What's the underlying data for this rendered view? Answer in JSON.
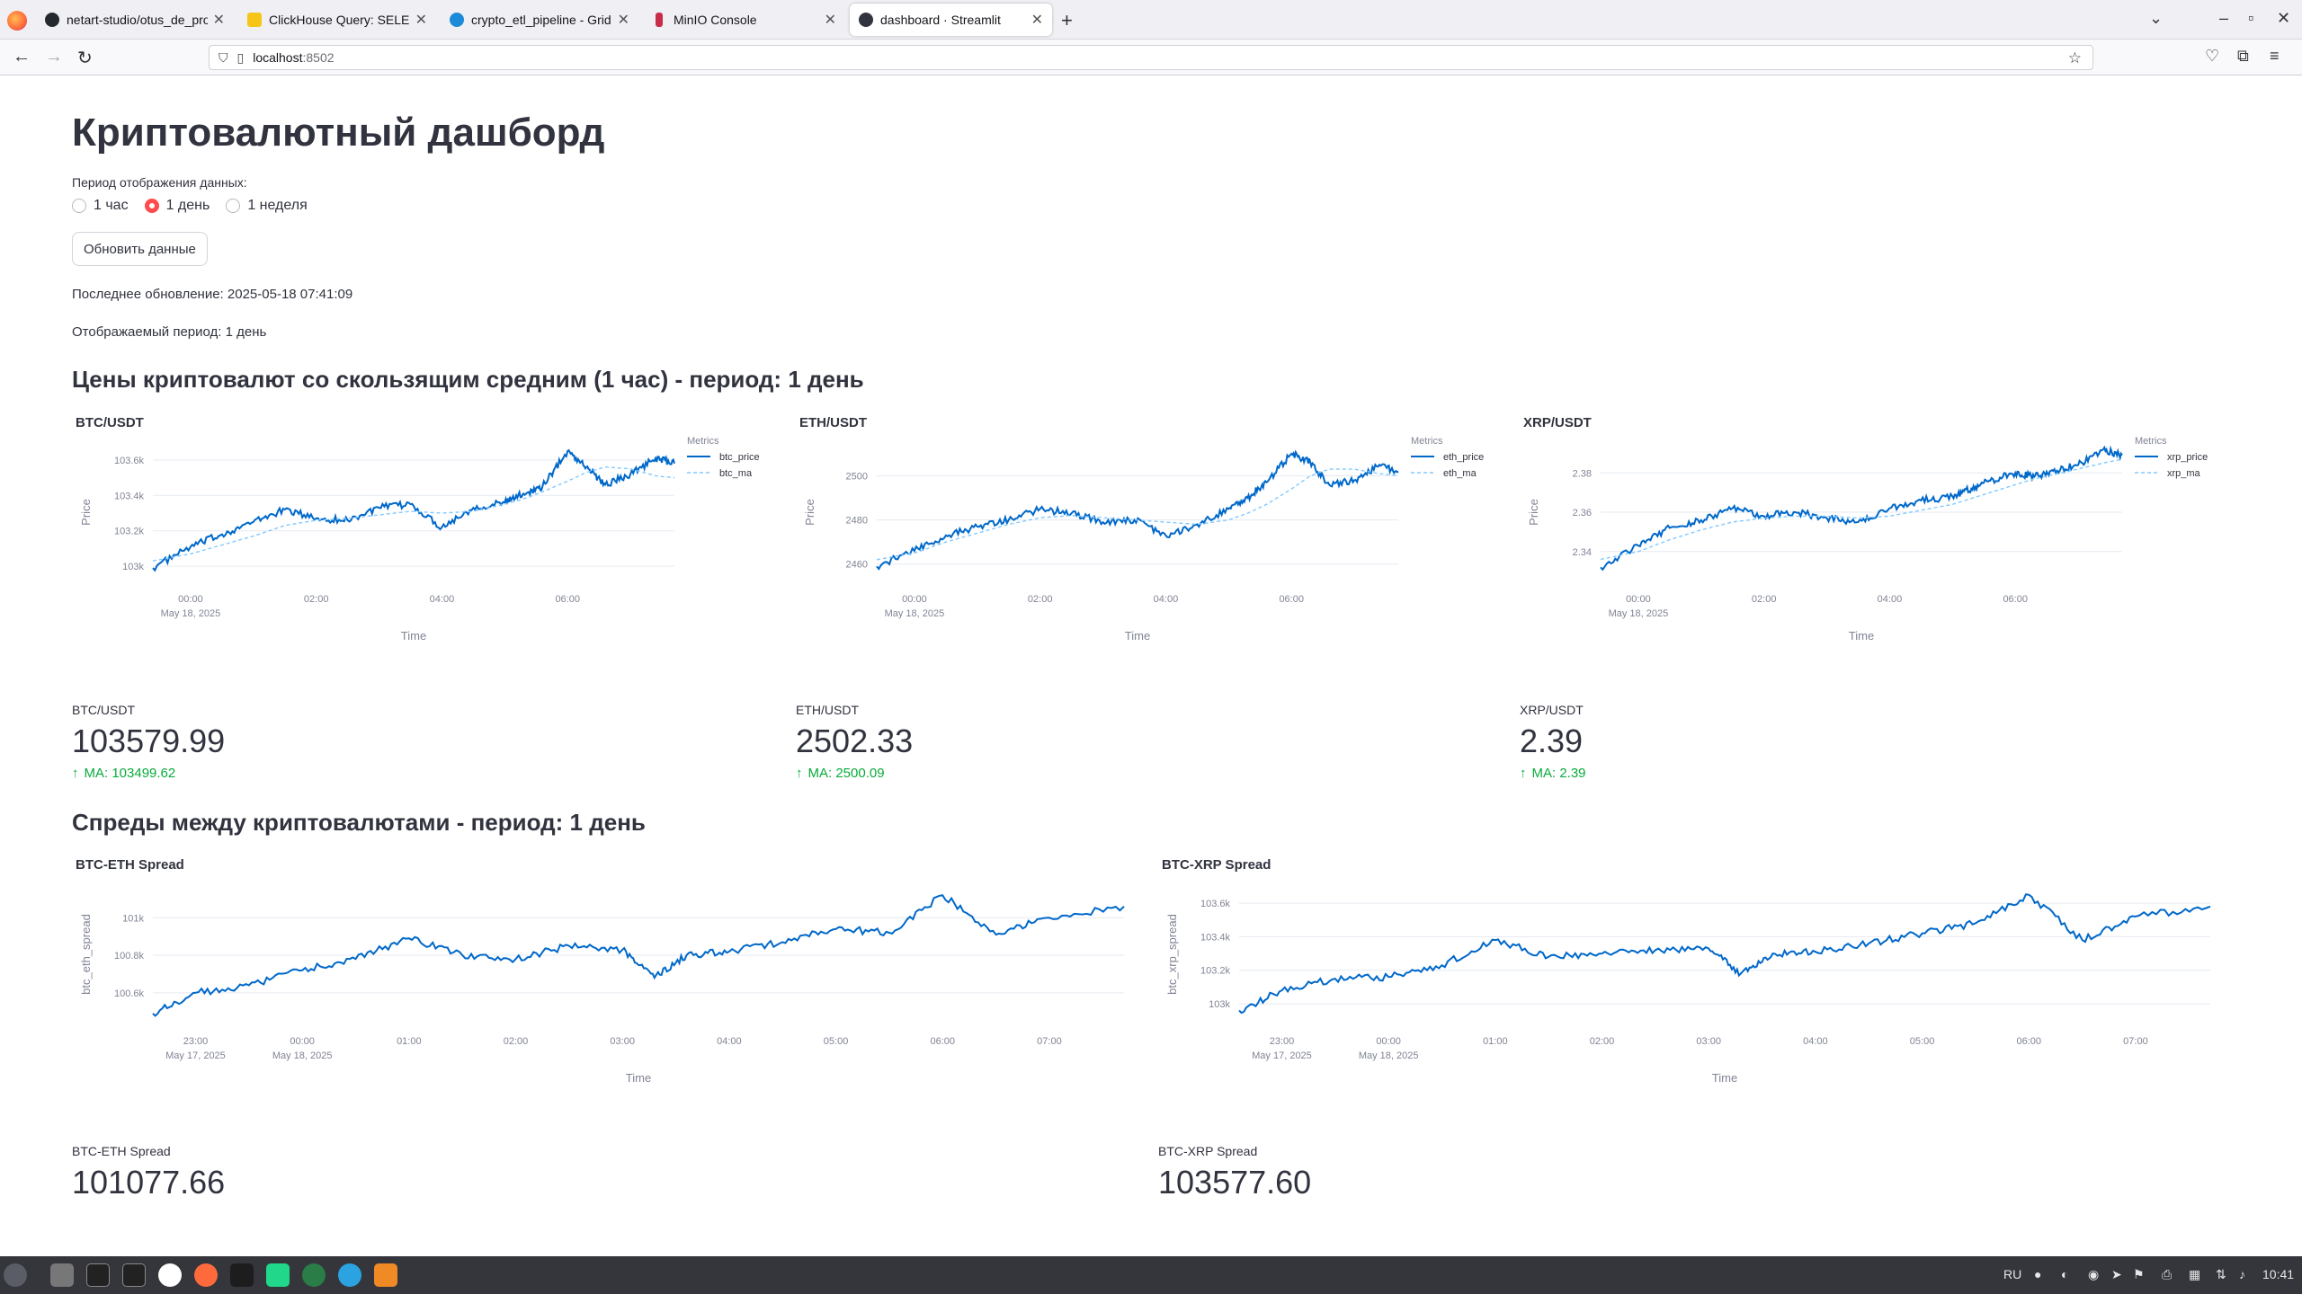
{
  "browser": {
    "tabs": [
      {
        "label": "netart-studio/otus_de_project",
        "color": "#24292f"
      },
      {
        "label": "ClickHouse Query: SELECT x.*",
        "color": "#f5c518"
      },
      {
        "label": "crypto_etl_pipeline - Grid - Air",
        "color": "#1b8ad8"
      },
      {
        "label": "MinIO Console",
        "color": "#c72c48"
      },
      {
        "label": "dashboard · Streamlit",
        "color": "#31333f"
      }
    ],
    "url_host": "localhost",
    "url_port": ":8502"
  },
  "page": {
    "title": "Криптовалютный дашборд",
    "radio_label": "Период отображения данных:",
    "radio_options": [
      "1 час",
      "1 день",
      "1 неделя"
    ],
    "radio_selected": 1,
    "refresh_button": "Обновить данные",
    "last_update": "Последнее обновление: 2025-05-18 07:41:09",
    "displayed_period": "Отображаемый период: 1 день",
    "section_prices": "Цены криптовалют со скользящим средним (1 час) - период: 1 день",
    "section_spreads": "Спреды между криптовалютами - период: 1 день"
  },
  "metrics": [
    {
      "label": "BTC/USDT",
      "value": "103579.99",
      "delta": "MA: 103499.62"
    },
    {
      "label": "ETH/USDT",
      "value": "2502.33",
      "delta": "MA: 2500.09"
    },
    {
      "label": "XRP/USDT",
      "value": "2.39",
      "delta": "MA: 2.39"
    },
    {
      "label": "BTC-ETH Spread",
      "value": "101077.66",
      "delta": ""
    },
    {
      "label": "BTC-XRP Spread",
      "value": "103577.60",
      "delta": ""
    }
  ],
  "colors": {
    "accent": "#ff4b4b",
    "line": "#0068c9",
    "ma": "#83c9ff",
    "delta": "#09ab3b"
  },
  "taskbar": {
    "lang": "RU",
    "clock": "10:41"
  },
  "chart_data": [
    {
      "type": "line",
      "title": "BTC/USDT",
      "xlabel": "Time",
      "ylabel": "Price",
      "legend_title": "Metrics",
      "legend_position": "top-right",
      "x_ticks": [
        "00:00",
        "02:00",
        "04:00",
        "06:00"
      ],
      "x_sub": "May 18, 2025",
      "y_ticks": [
        "103k",
        "103.2k",
        "103.4k",
        "103.6k"
      ],
      "ylim": [
        102950,
        103660
      ],
      "x": [
        -0.6,
        0.0,
        0.5,
        1.0,
        1.5,
        2.0,
        2.5,
        3.0,
        3.5,
        4.0,
        4.5,
        5.0,
        5.3,
        5.6,
        6.0,
        6.3,
        6.6,
        7.0,
        7.4,
        7.7
      ],
      "series": [
        {
          "name": "btc_price",
          "style": "solid",
          "values": [
            102990,
            103110,
            103180,
            103250,
            103320,
            103270,
            103260,
            103330,
            103350,
            103220,
            103330,
            103360,
            103410,
            103450,
            103650,
            103560,
            103460,
            103520,
            103610,
            103580
          ]
        },
        {
          "name": "btc_ma",
          "style": "dashed",
          "values": [
            103030,
            103070,
            103120,
            103170,
            103230,
            103260,
            103270,
            103290,
            103310,
            103300,
            103310,
            103350,
            103380,
            103420,
            103480,
            103530,
            103560,
            103550,
            103510,
            103500
          ]
        }
      ]
    },
    {
      "type": "line",
      "title": "ETH/USDT",
      "xlabel": "Time",
      "ylabel": "Price",
      "legend_title": "Metrics",
      "legend_position": "top-right",
      "x_ticks": [
        "00:00",
        "02:00",
        "04:00",
        "06:00"
      ],
      "x_sub": "May 18, 2025",
      "y_ticks": [
        "2460",
        "2480",
        "2500"
      ],
      "ylim": [
        2455,
        2512
      ],
      "x": [
        -0.6,
        0.0,
        0.5,
        1.0,
        1.5,
        2.0,
        2.5,
        3.0,
        3.5,
        4.0,
        4.5,
        5.0,
        5.3,
        5.6,
        6.0,
        6.3,
        6.6,
        7.0,
        7.4,
        7.7
      ],
      "series": [
        {
          "name": "eth_price",
          "style": "solid",
          "values": [
            2459,
            2466,
            2473,
            2477,
            2480,
            2485,
            2483,
            2479,
            2480,
            2473,
            2478,
            2485,
            2490,
            2497,
            2510,
            2506,
            2496,
            2498,
            2505,
            2502
          ]
        },
        {
          "name": "eth_ma",
          "style": "dashed",
          "values": [
            2462,
            2465,
            2470,
            2474,
            2478,
            2481,
            2482,
            2481,
            2480,
            2479,
            2478,
            2480,
            2483,
            2487,
            2494,
            2500,
            2503,
            2503,
            2501,
            2500
          ]
        }
      ]
    },
    {
      "type": "line",
      "title": "XRP/USDT",
      "xlabel": "Time",
      "ylabel": "Price",
      "legend_title": "Metrics",
      "legend_position": "top-right",
      "x_ticks": [
        "00:00",
        "02:00",
        "04:00",
        "06:00"
      ],
      "x_sub": "May 18, 2025",
      "y_ticks": [
        "2.34",
        "2.36",
        "2.38"
      ],
      "ylim": [
        2.328,
        2.392
      ],
      "x": [
        -0.6,
        0.0,
        0.5,
        1.0,
        1.5,
        2.0,
        2.5,
        3.0,
        3.5,
        4.0,
        4.5,
        5.0,
        5.3,
        5.6,
        6.0,
        6.3,
        6.6,
        7.0,
        7.4,
        7.7
      ],
      "series": [
        {
          "name": "xrp_price",
          "style": "solid",
          "values": [
            2.332,
            2.343,
            2.352,
            2.356,
            2.362,
            2.358,
            2.36,
            2.357,
            2.355,
            2.362,
            2.366,
            2.368,
            2.372,
            2.376,
            2.38,
            2.378,
            2.381,
            2.384,
            2.392,
            2.389
          ]
        },
        {
          "name": "xrp_ma",
          "style": "dashed",
          "values": [
            2.336,
            2.34,
            2.346,
            2.351,
            2.355,
            2.357,
            2.358,
            2.358,
            2.357,
            2.358,
            2.361,
            2.364,
            2.367,
            2.37,
            2.374,
            2.377,
            2.379,
            2.382,
            2.385,
            2.387
          ]
        }
      ]
    },
    {
      "type": "line",
      "title": "BTC-ETH Spread",
      "xlabel": "Time",
      "ylabel": "btc_eth_spread",
      "x_ticks": [
        "23:00",
        "00:00",
        "01:00",
        "02:00",
        "03:00",
        "04:00",
        "05:00",
        "06:00",
        "07:00"
      ],
      "x_sub": [
        "May 17, 2025",
        "May 18, 2025"
      ],
      "y_ticks": [
        "100.6k",
        "100.8k",
        "101k"
      ],
      "ylim": [
        100470,
        101140
      ],
      "x": [
        -1.4,
        -1.0,
        -0.5,
        0.0,
        0.5,
        1.0,
        1.5,
        2.0,
        2.5,
        3.0,
        3.3,
        3.6,
        4.0,
        4.5,
        5.0,
        5.5,
        6.0,
        6.5,
        7.0,
        7.7
      ],
      "series": [
        {
          "name": "btc_eth_spread",
          "style": "solid",
          "values": [
            100490,
            100600,
            100640,
            100720,
            100780,
            100890,
            100800,
            100780,
            100850,
            100830,
            100680,
            100800,
            100820,
            100870,
            100940,
            100920,
            101120,
            100910,
            101000,
            101060
          ]
        }
      ]
    },
    {
      "type": "line",
      "title": "BTC-XRP Spread",
      "xlabel": "Time",
      "ylabel": "btc_xrp_spread",
      "x_ticks": [
        "23:00",
        "00:00",
        "01:00",
        "02:00",
        "03:00",
        "04:00",
        "05:00",
        "06:00",
        "07:00"
      ],
      "x_sub": [
        "May 17, 2025",
        "May 18, 2025"
      ],
      "y_ticks": [
        "103k",
        "103.2k",
        "103.4k",
        "103.6k"
      ],
      "ylim": [
        102920,
        103670
      ],
      "x": [
        -1.4,
        -1.0,
        -0.5,
        0.0,
        0.5,
        1.0,
        1.5,
        2.0,
        2.5,
        3.0,
        3.3,
        3.6,
        4.0,
        4.5,
        5.0,
        5.5,
        6.0,
        6.5,
        7.0,
        7.7
      ],
      "series": [
        {
          "name": "btc_xrp_spread",
          "style": "solid",
          "values": [
            102960,
            103080,
            103150,
            103160,
            103230,
            103380,
            103280,
            103300,
            103320,
            103330,
            103180,
            103300,
            103310,
            103360,
            103420,
            103480,
            103650,
            103380,
            103520,
            103580
          ]
        }
      ]
    }
  ]
}
